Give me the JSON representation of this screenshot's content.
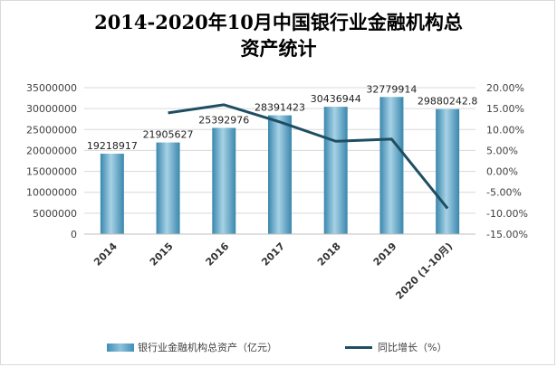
{
  "title_line1": "2014-2020年10月中国银行业金融机构总",
  "title_line2": "资产统计",
  "colors": {
    "bar_light": "#a7d2e6",
    "bar_dark": "#3a87ad",
    "line": "#1f4e63",
    "grid": "#d9d9d9",
    "axis_text": "#404040"
  },
  "chart_data": {
    "type": "bar",
    "title": "2014-2020年10月中国银行业金融机构总资产统计",
    "categories": [
      "2014",
      "2015",
      "2016",
      "2017",
      "2018",
      "2019",
      "2020 (1-10月)"
    ],
    "series": [
      {
        "name": "银行业金融机构总资产（亿元）",
        "type": "bar",
        "axis": "left",
        "values": [
          19218917,
          21905627,
          25392976,
          28391423,
          30436944,
          32779914,
          29880242.8
        ],
        "labels": [
          "19218917",
          "21905627",
          "25392976",
          "28391423",
          "30436944",
          "32779914",
          "29880242.8"
        ]
      },
      {
        "name": "同比增长（%）",
        "type": "line",
        "axis": "right",
        "values": [
          null,
          13.98,
          15.92,
          11.81,
          7.2,
          7.7,
          -8.85
        ]
      }
    ],
    "y_left": {
      "min": 0,
      "max": 35000000,
      "ticks": [
        "0",
        "5000000",
        "10000000",
        "15000000",
        "20000000",
        "25000000",
        "30000000",
        "35000000"
      ]
    },
    "y_right": {
      "min": -15,
      "max": 20,
      "ticks": [
        "-15.00%",
        "-10.00%",
        "-5.00%",
        "0.00%",
        "5.00%",
        "10.00%",
        "15.00%",
        "20.00%"
      ]
    },
    "grid": true,
    "legend_position": "bottom"
  }
}
